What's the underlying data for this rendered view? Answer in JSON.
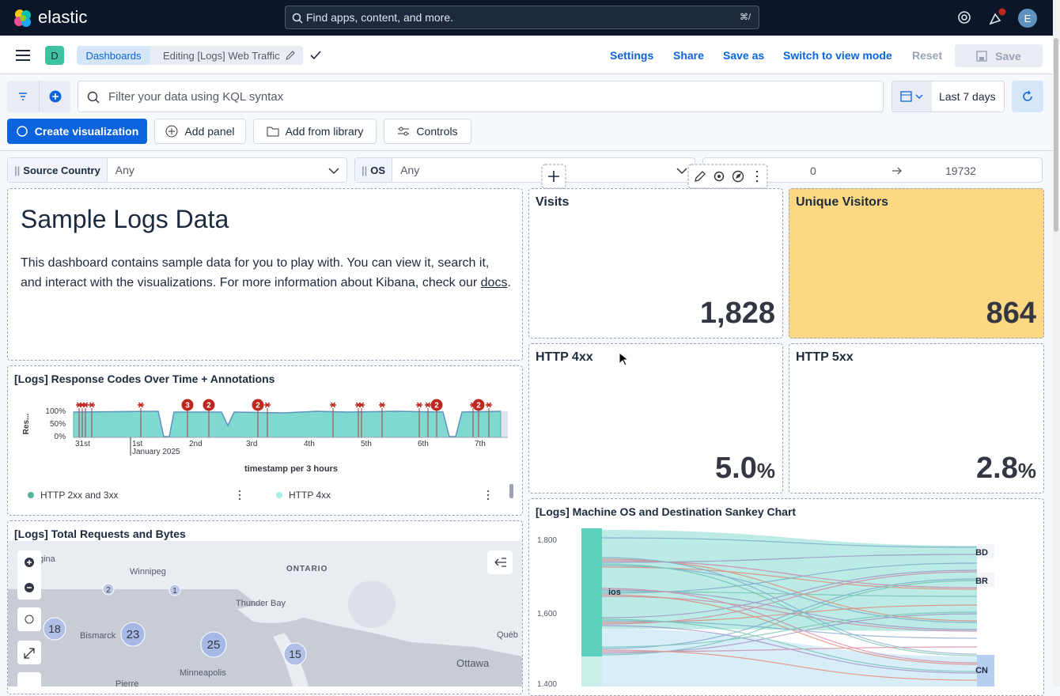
{
  "header": {
    "brand": "elastic",
    "search_placeholder": "Find apps, content, and more.",
    "search_shortcut": "⌘/",
    "avatar": "E"
  },
  "toolbar": {
    "space": "D",
    "breadcrumbs": [
      "Dashboards",
      "Editing [Logs] Web Traffic"
    ],
    "actions": [
      "Settings",
      "Share",
      "Save as",
      "Switch to view mode",
      "Reset"
    ],
    "save": "Save"
  },
  "query": {
    "placeholder": "Filter your data using KQL syntax",
    "time_range": "Last 7 days"
  },
  "buttons": [
    "Create visualization",
    "Add panel",
    "Add from library",
    "Controls"
  ],
  "controls": {
    "source_country": {
      "label": "Source Country",
      "value": "Any"
    },
    "os": {
      "label": "OS",
      "value": "Any"
    },
    "range": {
      "min": "0",
      "max": "19732"
    }
  },
  "markdown": {
    "title": "Sample Logs Data",
    "text": "This dashboard contains sample data for you to play with. You can view it, search it, and interact with the visualizations. For more information about Kibana, check our",
    "link": "docs",
    "end": "."
  },
  "metrics": [
    {
      "title": "Visits",
      "value": "1,828"
    },
    {
      "title": "Unique Visitors",
      "value": "864"
    },
    {
      "title": "HTTP 4xx",
      "value": "5.0",
      "unit": "%"
    },
    {
      "title": "HTTP 5xx",
      "value": "2.8",
      "unit": "%"
    }
  ],
  "response_chart": {
    "title": "[Logs] Response Codes Over Time + Annotations",
    "y_label": "Res...",
    "yticks": [
      "100%",
      "50%",
      "0%"
    ],
    "xticks": [
      "31st",
      "1st",
      "2nd",
      "3rd",
      "4th",
      "5th",
      "6th",
      "7th"
    ],
    "x_sublabel": "January 2025",
    "x_title": "timestamp per 3 hours",
    "annotations": [
      "3",
      "2",
      "2",
      "2",
      "2"
    ],
    "legend": [
      "HTTP 2xx and 3xx",
      "HTTP 4xx"
    ]
  },
  "map": {
    "title": "[Logs] Total Requests and Bytes",
    "places": [
      "gina",
      "Winnipeg",
      "ONTARIO",
      "Thunder Bay",
      "Bismarck",
      "Minneapolis",
      "Ottawa",
      "Pierre",
      "Québ"
    ],
    "clusters": [
      "2",
      "1",
      "18",
      "23",
      "25",
      "15"
    ]
  },
  "sankey": {
    "title": "[Logs] Machine OS and Destination Sankey Chart",
    "yticks": [
      "1,800",
      "1,600",
      "1,400"
    ],
    "nodes": [
      "ios",
      "BD",
      "BR",
      "CN"
    ]
  }
}
